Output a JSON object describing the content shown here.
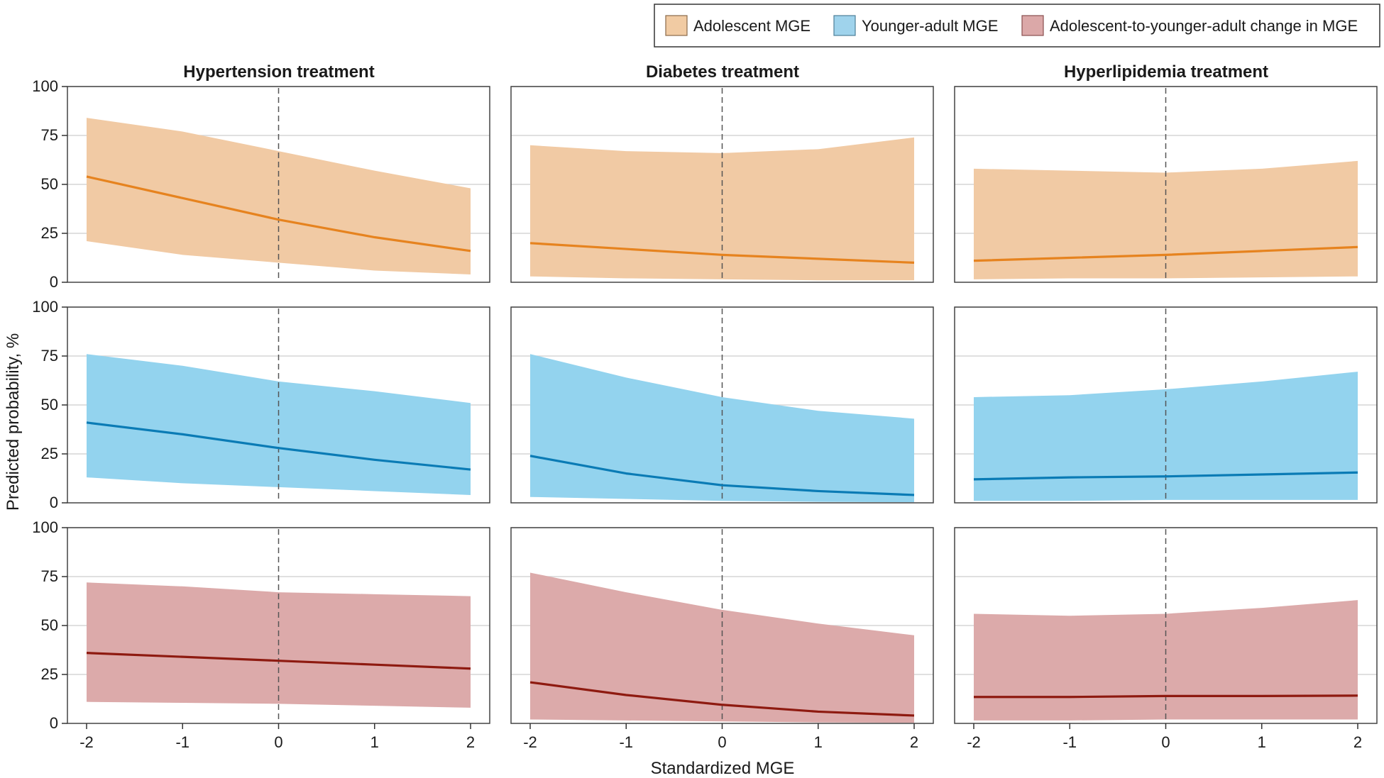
{
  "chart_data": {
    "type": "area",
    "legend": [
      {
        "name": "Adolescent MGE",
        "fill": "#f1cba3",
        "stroke": "#8a6a4a"
      },
      {
        "name": "Younger-adult MGE",
        "fill": "#9fd3ec",
        "stroke": "#4d7f98"
      },
      {
        "name": "Adolescent-to-younger-adult change in MGE",
        "fill": "#dba8a8",
        "stroke": "#8a4f4f"
      }
    ],
    "column_titles": [
      "Hypertension treatment",
      "Diabetes treatment",
      "Hyperlipidemia treatment"
    ],
    "xlabel": "Standardized MGE",
    "ylabel": "Predicted probability, %",
    "xlim": [
      -2,
      2
    ],
    "ylim": [
      0,
      100
    ],
    "xticks": [
      -2,
      -1,
      0,
      1,
      2
    ],
    "xtick_labels": [
      "-2",
      "-1",
      "0",
      "1",
      "2"
    ],
    "yticks": [
      0,
      25,
      50,
      75,
      100
    ],
    "ytick_labels": [
      "0",
      "25",
      "50",
      "75",
      "100"
    ],
    "reference_line_x": 0,
    "x": [
      -2,
      -1,
      0,
      1,
      2
    ],
    "rows": [
      {
        "series": "Adolescent MGE",
        "fill": "#f1caa4",
        "line": "#e6831f",
        "panels": [
          {
            "title": "Hypertension treatment",
            "estimate": [
              54,
              43,
              32,
              23,
              16
            ],
            "lower": [
              21,
              14,
              10,
              6,
              4
            ],
            "upper": [
              84,
              77,
              67,
              57,
              48
            ]
          },
          {
            "title": "Diabetes treatment",
            "estimate": [
              20,
              17,
              14,
              12,
              10
            ],
            "lower": [
              3,
              2,
              1.5,
              1,
              1
            ],
            "upper": [
              70,
              67,
              66,
              68,
              74
            ]
          },
          {
            "title": "Hyperlipidemia treatment",
            "estimate": [
              11,
              12.5,
              14,
              16,
              18
            ],
            "lower": [
              1.5,
              2,
              2,
              2.5,
              3
            ],
            "upper": [
              58,
              57,
              56,
              58,
              62
            ]
          }
        ]
      },
      {
        "series": "Younger-adult MGE",
        "fill": "#93d3ee",
        "line": "#0a7bb5",
        "panels": [
          {
            "title": "Hypertension treatment",
            "estimate": [
              41,
              35,
              28,
              22,
              17
            ],
            "lower": [
              13,
              10,
              8,
              6,
              4
            ],
            "upper": [
              76,
              70,
              62,
              57,
              51
            ]
          },
          {
            "title": "Diabetes treatment",
            "estimate": [
              24,
              15,
              9,
              6,
              4
            ],
            "lower": [
              3,
              2,
              1,
              0.5,
              0.3
            ],
            "upper": [
              76,
              64,
              54,
              47,
              43
            ]
          },
          {
            "title": "Hyperlipidemia treatment",
            "estimate": [
              12,
              13,
              13.5,
              14.5,
              15.5
            ],
            "lower": [
              1,
              1,
              1.5,
              1.5,
              1.5
            ],
            "upper": [
              54,
              55,
              58,
              62,
              67
            ]
          }
        ]
      },
      {
        "series": "Adolescent-to-younger-adult change in MGE",
        "fill": "#dcaaaa",
        "line": "#8e1a10",
        "panels": [
          {
            "title": "Hypertension treatment",
            "estimate": [
              36,
              34,
              32,
              30,
              28
            ],
            "lower": [
              11,
              10.5,
              10,
              9,
              8
            ],
            "upper": [
              72,
              70,
              67,
              66,
              65
            ]
          },
          {
            "title": "Diabetes treatment",
            "estimate": [
              21,
              14.5,
              9.5,
              6,
              4
            ],
            "lower": [
              2,
              1.5,
              1,
              0.5,
              0.3
            ],
            "upper": [
              77,
              67,
              58,
              51,
              45
            ]
          },
          {
            "title": "Hyperlipidemia treatment",
            "estimate": [
              13.5,
              13.5,
              14,
              14,
              14.2
            ],
            "lower": [
              1.5,
              1.5,
              2,
              2,
              2
            ],
            "upper": [
              56,
              55,
              56,
              59,
              63
            ]
          }
        ]
      }
    ]
  }
}
